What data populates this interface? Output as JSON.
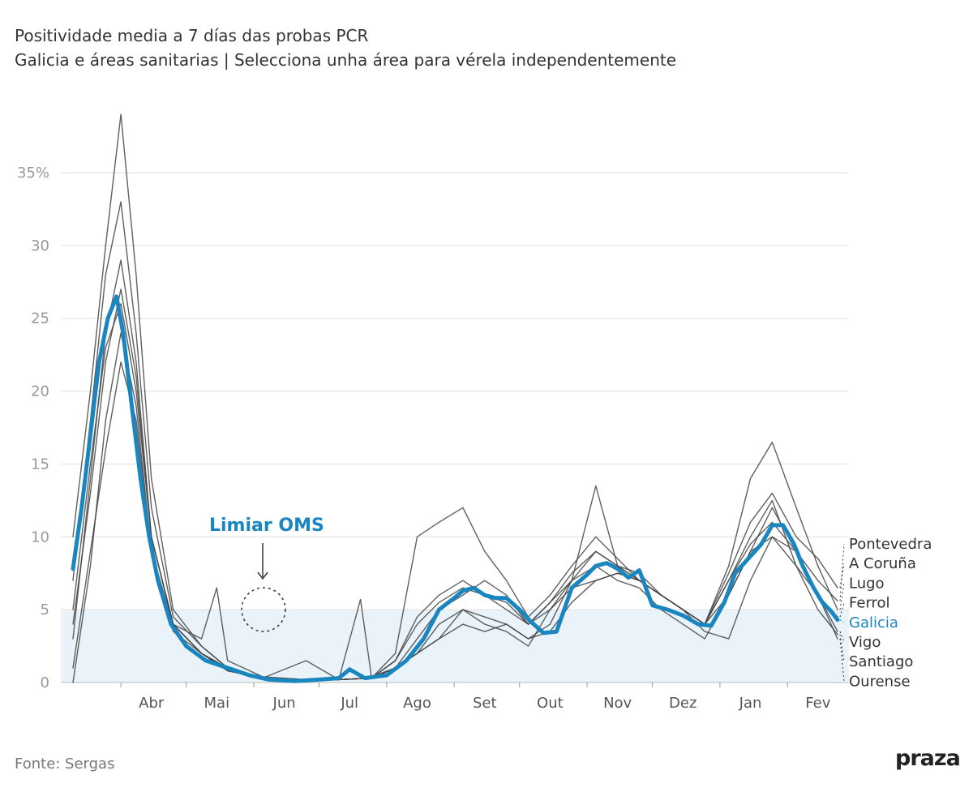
{
  "title": "Positividade media a 7 días das probas PCR",
  "subtitle": "Galicia e áreas sanitarias | Selecciona unha área para vérela independentemente",
  "source": "Fonte: Sergas",
  "brand": "praza",
  "annotation": "Limiar OMS",
  "colors": {
    "highlight": "#1a86c0",
    "other_series": "#444444",
    "threshold_band": "#e9f3f9",
    "grid": "#e0e0e0",
    "dotted_leader": "#333333"
  },
  "chart_data": {
    "type": "line",
    "title": "Positividade media a 7 días das probas PCR",
    "subtitle": "Galicia e áreas sanitarias | Selecciona unha área para vérela independentemente",
    "xlabel": "",
    "ylabel": "",
    "ylim": [
      0,
      40
    ],
    "yticks": [
      {
        "value": 0,
        "label": "0"
      },
      {
        "value": 5,
        "label": "5"
      },
      {
        "value": 10,
        "label": "10"
      },
      {
        "value": 15,
        "label": "15"
      },
      {
        "value": 20,
        "label": "20"
      },
      {
        "value": 25,
        "label": "25"
      },
      {
        "value": 30,
        "label": "30"
      },
      {
        "value": 35,
        "label": "35%"
      }
    ],
    "x_start": "2020-03-10",
    "x_end": "2021-02-24",
    "month_ticks": [
      {
        "date": "2020-04-01",
        "label": "Abr"
      },
      {
        "date": "2020-05-01",
        "label": "Mai"
      },
      {
        "date": "2020-06-01",
        "label": "Jun"
      },
      {
        "date": "2020-07-01",
        "label": "Jul"
      },
      {
        "date": "2020-08-01",
        "label": "Ago"
      },
      {
        "date": "2020-09-01",
        "label": "Set"
      },
      {
        "date": "2020-10-01",
        "label": "Out"
      },
      {
        "date": "2020-11-01",
        "label": "Nov"
      },
      {
        "date": "2020-12-01",
        "label": "Dez"
      },
      {
        "date": "2021-01-01",
        "label": "Jan"
      },
      {
        "date": "2021-02-01",
        "label": "Fev"
      }
    ],
    "threshold": {
      "value": 5,
      "label": "Limiar OMS"
    },
    "grid": true,
    "series": [
      {
        "name": "Pontevedra",
        "highlight": false,
        "x": [
          "2020-03-10",
          "2020-03-18",
          "2020-03-25",
          "2020-04-01",
          "2020-04-08",
          "2020-04-15",
          "2020-04-25",
          "2020-05-08",
          "2020-05-20",
          "2020-06-05",
          "2020-06-25",
          "2020-07-10",
          "2020-07-25",
          "2020-08-05",
          "2020-08-15",
          "2020-08-25",
          "2020-09-05",
          "2020-09-15",
          "2020-09-25",
          "2020-10-05",
          "2020-10-15",
          "2020-10-25",
          "2020-11-05",
          "2020-11-15",
          "2020-11-25",
          "2020-12-05",
          "2020-12-15",
          "2020-12-25",
          "2021-01-05",
          "2021-01-15",
          "2021-01-25",
          "2021-02-05",
          "2021-02-15",
          "2021-02-24"
        ],
        "y": [
          3,
          14,
          24,
          29,
          22,
          10,
          4,
          2,
          0.8,
          0.3,
          0.2,
          0.2,
          0.3,
          1.5,
          4.5,
          6,
          7,
          6,
          5,
          4,
          5.5,
          7.5,
          9,
          8,
          7.5,
          6,
          5,
          4,
          6,
          9,
          12,
          9,
          7,
          5.6
        ]
      },
      {
        "name": "A Coruña",
        "highlight": false,
        "x": [
          "2020-03-10",
          "2020-03-18",
          "2020-03-25",
          "2020-04-01",
          "2020-04-08",
          "2020-04-15",
          "2020-04-25",
          "2020-05-08",
          "2020-05-20",
          "2020-06-05",
          "2020-06-25",
          "2020-07-10",
          "2020-07-25",
          "2020-08-05",
          "2020-08-15",
          "2020-08-25",
          "2020-09-05",
          "2020-09-15",
          "2020-09-25",
          "2020-10-05",
          "2020-10-15",
          "2020-10-25",
          "2020-11-05",
          "2020-11-15",
          "2020-11-25",
          "2020-12-05",
          "2020-12-15",
          "2020-12-25",
          "2021-01-05",
          "2021-01-15",
          "2021-01-25",
          "2021-02-05",
          "2021-02-15",
          "2021-02-24"
        ],
        "y": [
          7,
          18,
          28,
          33,
          24,
          12,
          4.5,
          2.5,
          1,
          0.3,
          0.2,
          0.2,
          0.3,
          2,
          10,
          11,
          12,
          9,
          7,
          4.5,
          6,
          8,
          10,
          8.5,
          7,
          6,
          5,
          4,
          7.5,
          11,
          13,
          10,
          8.5,
          6.5
        ]
      },
      {
        "name": "Lugo",
        "highlight": false,
        "x": [
          "2020-03-10",
          "2020-03-18",
          "2020-03-25",
          "2020-04-01",
          "2020-04-08",
          "2020-04-15",
          "2020-04-25",
          "2020-05-08",
          "2020-05-15",
          "2020-05-20",
          "2020-06-05",
          "2020-06-25",
          "2020-07-10",
          "2020-07-25",
          "2020-08-05",
          "2020-08-15",
          "2020-08-25",
          "2020-09-05",
          "2020-09-15",
          "2020-09-25",
          "2020-10-05",
          "2020-10-15",
          "2020-10-25",
          "2020-11-05",
          "2020-11-15",
          "2020-11-25",
          "2020-12-05",
          "2020-12-15",
          "2020-12-25",
          "2021-01-05",
          "2021-01-15",
          "2021-01-25",
          "2021-02-05",
          "2021-02-15",
          "2021-02-24"
        ],
        "y": [
          1,
          9,
          16,
          22,
          18,
          9,
          4,
          3,
          6.5,
          1.5,
          0.4,
          0.2,
          0.2,
          0.3,
          1,
          3,
          5,
          6,
          7,
          6,
          4,
          5,
          6.5,
          7,
          7.5,
          7,
          6,
          5,
          4,
          8,
          14,
          16.5,
          12,
          8,
          5
        ]
      },
      {
        "name": "Ferrol",
        "highlight": false,
        "x": [
          "2020-03-10",
          "2020-03-18",
          "2020-03-25",
          "2020-04-01",
          "2020-04-08",
          "2020-04-15",
          "2020-04-25",
          "2020-05-08",
          "2020-05-20",
          "2020-06-05",
          "2020-06-25",
          "2020-07-10",
          "2020-07-25",
          "2020-08-05",
          "2020-08-15",
          "2020-08-25",
          "2020-09-05",
          "2020-09-15",
          "2020-09-25",
          "2020-10-05",
          "2020-10-15",
          "2020-10-25",
          "2020-11-05",
          "2020-11-15",
          "2020-11-25",
          "2020-12-05",
          "2020-12-15",
          "2020-12-25",
          "2021-01-05",
          "2021-01-15",
          "2021-01-25",
          "2021-02-05",
          "2021-02-15",
          "2021-02-24"
        ],
        "y": [
          5,
          15,
          23,
          26,
          20,
          10,
          4,
          2,
          1,
          0.3,
          1.5,
          0.2,
          0.3,
          1,
          2,
          3,
          4,
          3.5,
          4,
          3,
          4,
          7,
          13.5,
          8,
          7,
          6,
          5,
          4,
          7,
          10,
          12.5,
          8,
          6,
          4.5
        ]
      },
      {
        "name": "Galicia",
        "highlight": true,
        "x": [
          "2020-03-10",
          "2020-03-14",
          "2020-03-18",
          "2020-03-22",
          "2020-03-26",
          "2020-03-30",
          "2020-04-02",
          "2020-04-06",
          "2020-04-10",
          "2020-04-14",
          "2020-04-18",
          "2020-04-24",
          "2020-05-01",
          "2020-05-10",
          "2020-05-20",
          "2020-05-30",
          "2020-06-08",
          "2020-06-20",
          "2020-07-01",
          "2020-07-10",
          "2020-07-15",
          "2020-07-22",
          "2020-08-01",
          "2020-08-10",
          "2020-08-18",
          "2020-08-25",
          "2020-09-01",
          "2020-09-05",
          "2020-09-10",
          "2020-09-15",
          "2020-09-20",
          "2020-09-25",
          "2020-10-01",
          "2020-10-06",
          "2020-10-12",
          "2020-10-18",
          "2020-10-25",
          "2020-11-01",
          "2020-11-05",
          "2020-11-10",
          "2020-11-15",
          "2020-11-20",
          "2020-11-25",
          "2020-12-01",
          "2020-12-08",
          "2020-12-15",
          "2020-12-22",
          "2020-12-28",
          "2021-01-03",
          "2021-01-08",
          "2021-01-14",
          "2021-01-20",
          "2021-01-25",
          "2021-01-30",
          "2021-02-04",
          "2021-02-08",
          "2021-02-13",
          "2021-02-17",
          "2021-02-21",
          "2021-02-24"
        ],
        "y": [
          7.8,
          12,
          17,
          22,
          25,
          26.5,
          24,
          19,
          14,
          10,
          7,
          4,
          2.5,
          1.5,
          1,
          0.5,
          0.2,
          0.1,
          0.2,
          0.3,
          0.9,
          0.3,
          0.5,
          1.5,
          3,
          5,
          5.8,
          6.3,
          6.5,
          6,
          5.8,
          5.8,
          5,
          4.2,
          3.4,
          3.5,
          6.5,
          7.4,
          8,
          8.2,
          7.8,
          7.2,
          7.7,
          5.3,
          5,
          4.6,
          4,
          3.9,
          5.5,
          7.5,
          8.5,
          9.5,
          10.8,
          10.8,
          9.5,
          8,
          6.5,
          5.5,
          4.9,
          4.3
        ]
      },
      {
        "name": "Vigo",
        "highlight": false,
        "x": [
          "2020-03-10",
          "2020-03-18",
          "2020-03-25",
          "2020-04-01",
          "2020-04-08",
          "2020-04-15",
          "2020-04-25",
          "2020-05-08",
          "2020-05-20",
          "2020-06-05",
          "2020-06-25",
          "2020-07-10",
          "2020-07-25",
          "2020-08-05",
          "2020-08-15",
          "2020-08-25",
          "2020-09-05",
          "2020-09-15",
          "2020-09-25",
          "2020-10-05",
          "2020-10-15",
          "2020-10-25",
          "2020-11-05",
          "2020-11-15",
          "2020-11-25",
          "2020-12-05",
          "2020-12-15",
          "2020-12-25",
          "2021-01-05",
          "2021-01-15",
          "2021-01-25",
          "2021-02-05",
          "2021-02-15",
          "2021-02-24"
        ],
        "y": [
          10,
          20,
          30,
          39,
          28,
          14,
          5,
          2.5,
          1,
          0.3,
          0.2,
          0.2,
          0.3,
          1.5,
          4,
          5.5,
          6.5,
          6,
          5.5,
          4,
          5.5,
          7,
          9,
          8,
          7,
          6,
          5,
          4,
          7,
          9.5,
          11,
          9,
          6,
          3.5
        ]
      },
      {
        "name": "Santiago",
        "highlight": false,
        "x": [
          "2020-03-10",
          "2020-03-18",
          "2020-03-25",
          "2020-04-01",
          "2020-04-08",
          "2020-04-15",
          "2020-04-25",
          "2020-05-08",
          "2020-05-20",
          "2020-06-05",
          "2020-06-25",
          "2020-07-10",
          "2020-07-20",
          "2020-07-25",
          "2020-08-05",
          "2020-08-15",
          "2020-08-25",
          "2020-09-05",
          "2020-09-15",
          "2020-09-25",
          "2020-10-05",
          "2020-10-15",
          "2020-10-25",
          "2020-11-05",
          "2020-11-15",
          "2020-11-25",
          "2020-12-05",
          "2020-12-15",
          "2020-12-25",
          "2021-01-05",
          "2021-01-15",
          "2021-01-25",
          "2021-02-05",
          "2021-02-15",
          "2021-02-24"
        ],
        "y": [
          4,
          13,
          22,
          27,
          21,
          10,
          4,
          2,
          1,
          0.3,
          0.2,
          0.2,
          5.7,
          0.4,
          1,
          2,
          3,
          5,
          4,
          3.5,
          2.5,
          5,
          7,
          8,
          7,
          6.5,
          5,
          4,
          3,
          6,
          9,
          10,
          8,
          5,
          3.3
        ]
      },
      {
        "name": "Ourense",
        "highlight": false,
        "x": [
          "2020-03-10",
          "2020-03-18",
          "2020-03-25",
          "2020-04-01",
          "2020-04-08",
          "2020-04-15",
          "2020-04-25",
          "2020-05-08",
          "2020-05-20",
          "2020-06-05",
          "2020-06-25",
          "2020-07-10",
          "2020-07-25",
          "2020-08-05",
          "2020-08-15",
          "2020-08-25",
          "2020-09-05",
          "2020-09-15",
          "2020-09-25",
          "2020-10-05",
          "2020-10-15",
          "2020-10-25",
          "2020-11-05",
          "2020-11-15",
          "2020-11-25",
          "2020-12-05",
          "2020-12-15",
          "2020-12-25",
          "2021-01-05",
          "2021-01-15",
          "2021-01-25",
          "2021-02-05",
          "2021-02-15",
          "2021-02-24"
        ],
        "y": [
          0,
          8,
          18,
          24,
          19,
          9,
          3.5,
          2,
          0.8,
          0.3,
          0.2,
          0.2,
          0.3,
          1,
          2,
          4,
          5,
          4.5,
          4,
          3,
          3.5,
          5.5,
          7,
          7.5,
          7,
          6,
          5,
          3.5,
          3,
          7,
          10,
          9,
          6,
          3
        ]
      }
    ]
  }
}
